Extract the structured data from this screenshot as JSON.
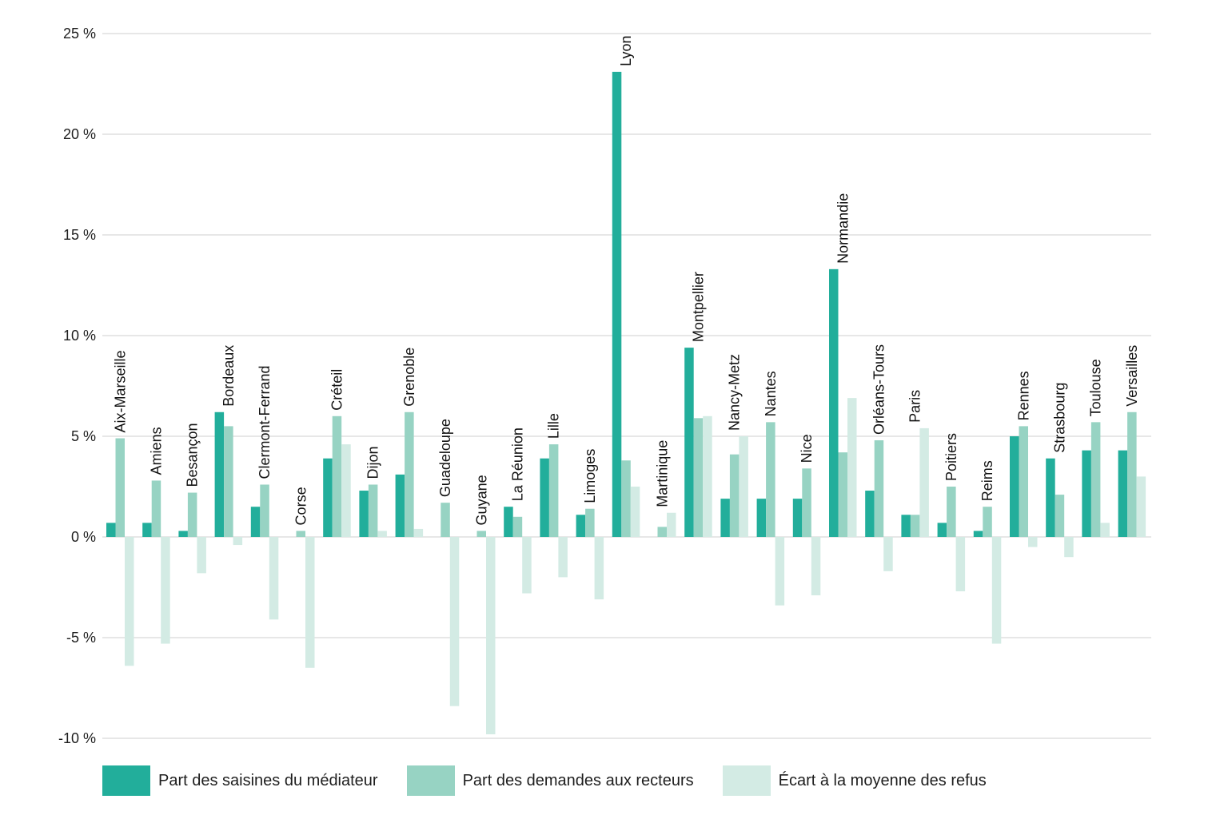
{
  "chart_data": {
    "type": "bar",
    "categories": [
      "Aix-Marseille",
      "Amiens",
      "Besançon",
      "Bordeaux",
      "Clermont-Ferrand",
      "Corse",
      "Créteil",
      "Dijon",
      "Grenoble",
      "Guadeloupe",
      "Guyane",
      "La Réunion",
      "Lille",
      "Limoges",
      "Lyon",
      "Martinique",
      "Montpellier",
      "Nancy-Metz",
      "Nantes",
      "Nice",
      "Normandie",
      "Orléans-Tours",
      "Paris",
      "Poitiers",
      "Reims",
      "Rennes",
      "Strasbourg",
      "Toulouse",
      "Versailles"
    ],
    "series": [
      {
        "name": "Part des saisines du médiateur",
        "color": "#22ae9b",
        "values": [
          0.7,
          0.7,
          0.3,
          6.2,
          1.5,
          0,
          3.9,
          2.3,
          3.1,
          0,
          0,
          1.5,
          3.9,
          1.1,
          23.1,
          0,
          9.4,
          1.9,
          1.9,
          1.9,
          13.3,
          2.3,
          1.1,
          0.7,
          0.3,
          5.0,
          3.9,
          4.3,
          4.3
        ]
      },
      {
        "name": "Part des demandes aux recteurs",
        "color": "#97d3c3",
        "values": [
          4.9,
          2.8,
          2.2,
          5.5,
          2.6,
          0.3,
          6.0,
          2.6,
          6.2,
          1.7,
          0.3,
          1.0,
          4.6,
          1.4,
          3.8,
          0.5,
          5.9,
          4.1,
          5.7,
          3.4,
          4.2,
          4.8,
          1.1,
          2.5,
          1.5,
          5.5,
          2.1,
          5.7,
          6.2
        ]
      },
      {
        "name": "Écart à la moyenne des refus",
        "color": "#d3ebe4",
        "values": [
          -6.4,
          -5.3,
          -1.8,
          -0.4,
          -4.1,
          -6.5,
          4.6,
          0.3,
          0.4,
          -8.4,
          -9.8,
          -2.8,
          -2.0,
          -3.1,
          2.5,
          1.2,
          6.0,
          5.0,
          -3.4,
          -2.9,
          6.9,
          -1.7,
          5.4,
          -2.7,
          -5.3,
          -0.5,
          -1.0,
          0.7,
          3.0
        ]
      }
    ],
    "ylim": [
      -10,
      25
    ],
    "yticks": [
      25,
      20,
      15,
      10,
      5,
      0,
      -5,
      -10
    ],
    "ytick_labels": [
      "25 %",
      "20 %",
      "15 %",
      "10 %",
      "5 %",
      "0 %",
      "-5 %",
      "-10 %"
    ],
    "grid": true,
    "legend_position": "bottom-left"
  },
  "legend": {
    "item1": "Part des saisines du médiateur",
    "item2": "Part des demandes aux recteurs",
    "item3": "Écart à la moyenne des refus"
  }
}
